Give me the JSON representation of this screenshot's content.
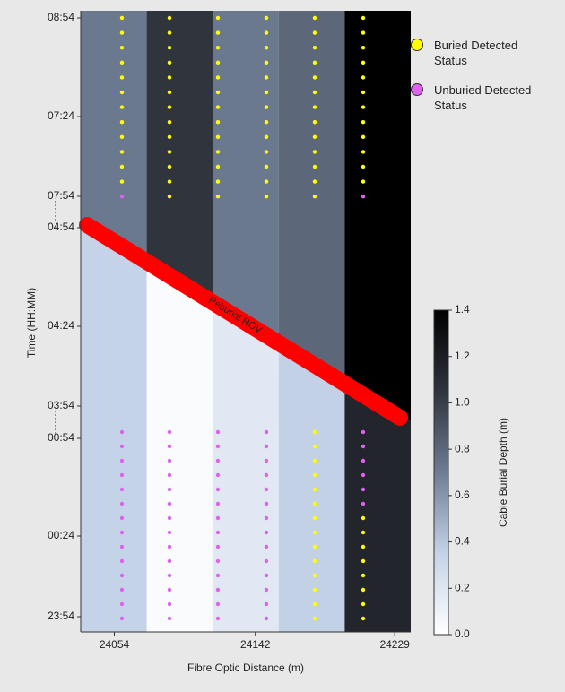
{
  "chart_data": {
    "type": "heatmap",
    "xlabel": "Fibre Optic Distance (m)",
    "ylabel": "Time (HH:MM)",
    "xlim": [
      24033,
      24239
    ],
    "xticks": [
      24054,
      24142,
      24229
    ],
    "y_segments": [
      {
        "yticks": [
          "08:54",
          "07:24",
          "07:54"
        ]
      },
      {
        "yticks": [
          "04:54",
          "04:24",
          "03:54"
        ]
      },
      {
        "yticks": [
          "00:54",
          "00:24",
          "23:54"
        ]
      }
    ],
    "depth_before": [
      0.72,
      1.05,
      0.72,
      0.8,
      1.4
    ],
    "depth_after": [
      0.35,
      0.03,
      0.18,
      0.36,
      1.15
    ],
    "dots_before": [
      [
        0,
        0,
        0,
        0,
        0,
        0,
        0,
        0,
        0,
        0,
        0,
        0,
        1
      ],
      [
        0,
        0,
        0,
        0,
        0,
        0,
        0,
        0,
        0,
        0,
        0,
        0,
        0
      ],
      [
        0,
        0,
        0,
        0,
        0,
        0,
        0,
        0,
        0,
        0,
        0,
        0,
        0
      ],
      [
        0,
        0,
        0,
        0,
        0,
        0,
        0,
        0,
        0,
        0,
        0,
        0,
        0
      ],
      [
        0,
        0,
        0,
        0,
        0,
        0,
        0,
        0,
        0,
        0,
        0,
        0,
        0
      ],
      [
        0,
        0,
        0,
        0,
        0,
        0,
        0,
        0,
        0,
        0,
        0,
        0,
        1
      ]
    ],
    "dots_after": [
      [
        1,
        1,
        1,
        1,
        1,
        1,
        1,
        1,
        1,
        1,
        1,
        1,
        1,
        1
      ],
      [
        1,
        1,
        1,
        1,
        1,
        1,
        1,
        1,
        1,
        1,
        1,
        1,
        1,
        1
      ],
      [
        1,
        1,
        1,
        1,
        1,
        1,
        1,
        1,
        1,
        1,
        1,
        1,
        1,
        1
      ],
      [
        1,
        1,
        1,
        1,
        1,
        1,
        1,
        1,
        1,
        1,
        1,
        1,
        1,
        1
      ],
      [
        0,
        0,
        0,
        0,
        0,
        0,
        0,
        0,
        0,
        0,
        0,
        0,
        0,
        0
      ],
      [
        1,
        1,
        1,
        1,
        1,
        1,
        0,
        0,
        0,
        0,
        0,
        0,
        0,
        0
      ]
    ],
    "series": [
      {
        "name": "Buried Detected Status",
        "color": "#ffff00"
      },
      {
        "name": "Unburied Detected Status",
        "color": "#e060f0"
      }
    ],
    "clim": [
      0,
      1.4
    ],
    "cticks": [
      {
        "value": 0,
        "label": "0.0"
      },
      {
        "value": 0.2,
        "label": "0.2"
      },
      {
        "value": 0.4,
        "label": "0.4"
      },
      {
        "value": 0.6,
        "label": "0.6"
      },
      {
        "value": 0.8,
        "label": "0.8"
      },
      {
        "value": 1.0,
        "label": "1.0"
      },
      {
        "value": 1.2,
        "label": "1.2"
      },
      {
        "value": 1.4,
        "label": "1.4"
      }
    ],
    "clabel": "Cable Burial Depth (m)",
    "colormap": [
      "#ffffff",
      "#c4d3e8",
      "#6e7d93",
      "#2f343d",
      "#000000"
    ],
    "annotation": "Reburial ROV",
    "annotation_color": "#ff0000"
  }
}
